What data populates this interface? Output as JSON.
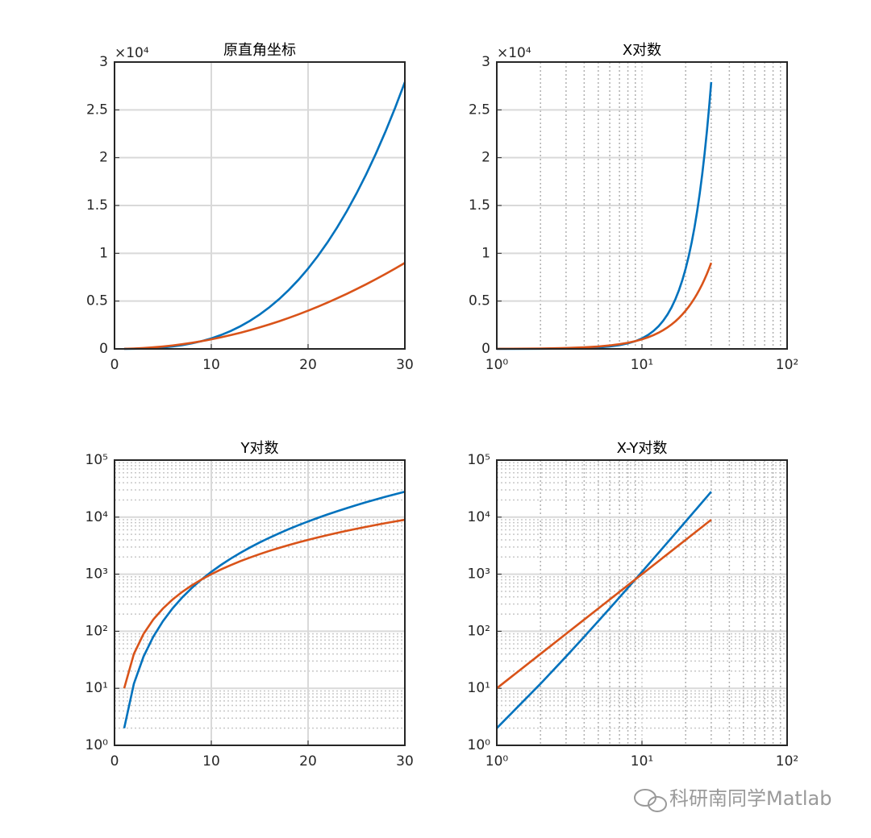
{
  "chart_data": [
    {
      "type": "line",
      "title": "原直角坐标",
      "y_offset_label": "×10⁴",
      "xscale": "linear",
      "yscale": "linear",
      "grid": true,
      "minor_grid_x": false,
      "minor_grid_y": false,
      "xlim": [
        0,
        30
      ],
      "xticks": [
        0,
        10,
        20,
        30
      ],
      "ylim": [
        0,
        30000
      ],
      "yticks": [
        0,
        {
          "value": 5000,
          "label": "0.5"
        },
        {
          "value": 10000,
          "label": "1"
        },
        {
          "value": 15000,
          "label": "1.5"
        },
        {
          "value": 20000,
          "label": "2"
        },
        {
          "value": 25000,
          "label": "2.5"
        },
        {
          "value": 30000,
          "label": "3"
        }
      ],
      "x": [
        1,
        2,
        3,
        4,
        5,
        6,
        7,
        8,
        9,
        10,
        11,
        12,
        13,
        14,
        15,
        16,
        17,
        18,
        19,
        20,
        21,
        22,
        23,
        24,
        25,
        26,
        27,
        28,
        29,
        30
      ],
      "series": [
        {
          "color": "#0072bd",
          "values": [
            2,
            12,
            36,
            80,
            150,
            252,
            392,
            576,
            810,
            1100,
            1452,
            1872,
            2366,
            2940,
            3600,
            4352,
            5202,
            6156,
            7220,
            8400,
            9702,
            11132,
            12696,
            14400,
            16250,
            18252,
            20412,
            22736,
            25230,
            27900
          ]
        },
        {
          "color": "#d95319",
          "values": [
            10,
            40,
            90,
            160,
            250,
            360,
            490,
            640,
            810,
            1000,
            1210,
            1440,
            1690,
            1960,
            2250,
            2560,
            2890,
            3240,
            3610,
            4000,
            4410,
            4840,
            5290,
            5760,
            6250,
            6760,
            7290,
            7840,
            8410,
            9000
          ]
        }
      ]
    },
    {
      "type": "line",
      "title": "X对数",
      "y_offset_label": "×10⁴",
      "xscale": "log",
      "yscale": "linear",
      "grid": true,
      "minor_grid_x": true,
      "minor_grid_y": false,
      "xlim": [
        1,
        100
      ],
      "xticks": [
        {
          "value": 1,
          "label": "10⁰"
        },
        {
          "value": 10,
          "label": "10¹"
        },
        {
          "value": 100,
          "label": "10²"
        }
      ],
      "ylim": [
        0,
        30000
      ],
      "yticks": [
        0,
        {
          "value": 5000,
          "label": "0.5"
        },
        {
          "value": 10000,
          "label": "1"
        },
        {
          "value": 15000,
          "label": "1.5"
        },
        {
          "value": 20000,
          "label": "2"
        },
        {
          "value": 25000,
          "label": "2.5"
        },
        {
          "value": 30000,
          "label": "3"
        }
      ],
      "x": [
        1,
        2,
        3,
        4,
        5,
        6,
        7,
        8,
        9,
        10,
        11,
        12,
        13,
        14,
        15,
        16,
        17,
        18,
        19,
        20,
        21,
        22,
        23,
        24,
        25,
        26,
        27,
        28,
        29,
        30
      ],
      "series": [
        {
          "color": "#0072bd",
          "values": [
            2,
            12,
            36,
            80,
            150,
            252,
            392,
            576,
            810,
            1100,
            1452,
            1872,
            2366,
            2940,
            3600,
            4352,
            5202,
            6156,
            7220,
            8400,
            9702,
            11132,
            12696,
            14400,
            16250,
            18252,
            20412,
            22736,
            25230,
            27900
          ]
        },
        {
          "color": "#d95319",
          "values": [
            10,
            40,
            90,
            160,
            250,
            360,
            490,
            640,
            810,
            1000,
            1210,
            1440,
            1690,
            1960,
            2250,
            2560,
            2890,
            3240,
            3610,
            4000,
            4410,
            4840,
            5290,
            5760,
            6250,
            6760,
            7290,
            7840,
            8410,
            9000
          ]
        }
      ]
    },
    {
      "type": "line",
      "title": "Y对数",
      "xscale": "linear",
      "yscale": "log",
      "grid": true,
      "minor_grid_x": false,
      "minor_grid_y": true,
      "xlim": [
        0,
        30
      ],
      "xticks": [
        0,
        10,
        20,
        30
      ],
      "ylim": [
        1,
        100000
      ],
      "yticks": [
        {
          "value": 1,
          "label": "10⁰"
        },
        {
          "value": 10,
          "label": "10¹"
        },
        {
          "value": 100,
          "label": "10²"
        },
        {
          "value": 1000,
          "label": "10³"
        },
        {
          "value": 10000,
          "label": "10⁴"
        },
        {
          "value": 100000,
          "label": "10⁵"
        }
      ],
      "x": [
        1,
        2,
        3,
        4,
        5,
        6,
        7,
        8,
        9,
        10,
        11,
        12,
        13,
        14,
        15,
        16,
        17,
        18,
        19,
        20,
        21,
        22,
        23,
        24,
        25,
        26,
        27,
        28,
        29,
        30
      ],
      "series": [
        {
          "color": "#0072bd",
          "values": [
            2,
            12,
            36,
            80,
            150,
            252,
            392,
            576,
            810,
            1100,
            1452,
            1872,
            2366,
            2940,
            3600,
            4352,
            5202,
            6156,
            7220,
            8400,
            9702,
            11132,
            12696,
            14400,
            16250,
            18252,
            20412,
            22736,
            25230,
            27900
          ]
        },
        {
          "color": "#d95319",
          "values": [
            10,
            40,
            90,
            160,
            250,
            360,
            490,
            640,
            810,
            1000,
            1210,
            1440,
            1690,
            1960,
            2250,
            2560,
            2890,
            3240,
            3610,
            4000,
            4410,
            4840,
            5290,
            5760,
            6250,
            6760,
            7290,
            7840,
            8410,
            9000
          ]
        }
      ]
    },
    {
      "type": "line",
      "title": "X-Y对数",
      "xscale": "log",
      "yscale": "log",
      "grid": true,
      "minor_grid_x": true,
      "minor_grid_y": true,
      "xlim": [
        1,
        100
      ],
      "xticks": [
        {
          "value": 1,
          "label": "10⁰"
        },
        {
          "value": 10,
          "label": "10¹"
        },
        {
          "value": 100,
          "label": "10²"
        }
      ],
      "ylim": [
        1,
        100000
      ],
      "yticks": [
        {
          "value": 1,
          "label": "10⁰"
        },
        {
          "value": 10,
          "label": "10¹"
        },
        {
          "value": 100,
          "label": "10²"
        },
        {
          "value": 1000,
          "label": "10³"
        },
        {
          "value": 10000,
          "label": "10⁴"
        },
        {
          "value": 100000,
          "label": "10⁵"
        }
      ],
      "x": [
        1,
        2,
        3,
        4,
        5,
        6,
        7,
        8,
        9,
        10,
        11,
        12,
        13,
        14,
        15,
        16,
        17,
        18,
        19,
        20,
        21,
        22,
        23,
        24,
        25,
        26,
        27,
        28,
        29,
        30
      ],
      "series": [
        {
          "color": "#0072bd",
          "values": [
            2,
            12,
            36,
            80,
            150,
            252,
            392,
            576,
            810,
            1100,
            1452,
            1872,
            2366,
            2940,
            3600,
            4352,
            5202,
            6156,
            7220,
            8400,
            9702,
            11132,
            12696,
            14400,
            16250,
            18252,
            20412,
            22736,
            25230,
            27900
          ]
        },
        {
          "color": "#d95319",
          "values": [
            10,
            40,
            90,
            160,
            250,
            360,
            490,
            640,
            810,
            1000,
            1210,
            1440,
            1690,
            1960,
            2250,
            2560,
            2890,
            3240,
            3610,
            4000,
            4410,
            4840,
            5290,
            5760,
            6250,
            6760,
            7290,
            7840,
            8410,
            9000
          ]
        }
      ]
    }
  ],
  "watermark": "科研南同学Matlab"
}
